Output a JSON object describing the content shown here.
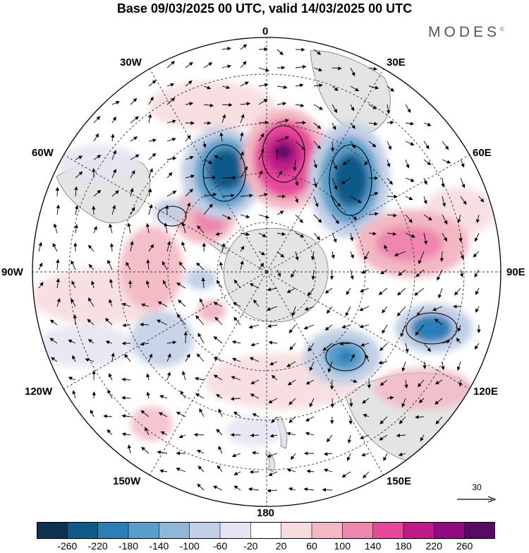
{
  "title": "Base 09/03/2025 00 UTC, valid 14/03/2025 00 UTC",
  "brand": "MODES",
  "brand_mark": "©",
  "longitude_labels": {
    "lon0": "0",
    "lon30e": "30E",
    "lon60e": "60E",
    "lon90e": "90E",
    "lon120e": "120E",
    "lon150e": "150E",
    "lon180": "180",
    "lon150w": "150W",
    "lon120w": "120W",
    "lon90w": "90W",
    "lon60w": "60W",
    "lon30w": "30W"
  },
  "reference_vector": "30",
  "colorbar": {
    "ticks": [
      "-260",
      "-220",
      "-180",
      "-140",
      "-100",
      "-60",
      "-20",
      "20",
      "60",
      "100",
      "140",
      "180",
      "220",
      "260"
    ],
    "colors": [
      "#0d3150",
      "#0f5a8a",
      "#2a7fb8",
      "#5a9fcb",
      "#8fb7d9",
      "#c3cfe6",
      "#e6e4f2",
      "#ffffff",
      "#f7dcdf",
      "#f3b8c3",
      "#ee86ad",
      "#e6489a",
      "#bf1a87",
      "#8e0c80",
      "#5a0a66"
    ]
  },
  "anomaly_centers": [
    {
      "sign": "negative",
      "value": -200,
      "region": "south atlantic"
    },
    {
      "sign": "positive",
      "value": 250,
      "region": "0 lon"
    },
    {
      "sign": "negative",
      "value": -220,
      "region": "20E"
    },
    {
      "sign": "positive",
      "value": 140,
      "region": "70E"
    },
    {
      "sign": "negative",
      "value": -180,
      "region": "105E"
    },
    {
      "sign": "negative",
      "value": -160,
      "region": "135E"
    },
    {
      "sign": "positive",
      "value": 120,
      "region": "drake passage"
    }
  ],
  "colors": {
    "land": "#e6e6e6",
    "coast": "#777777",
    "grid": "#333333"
  }
}
